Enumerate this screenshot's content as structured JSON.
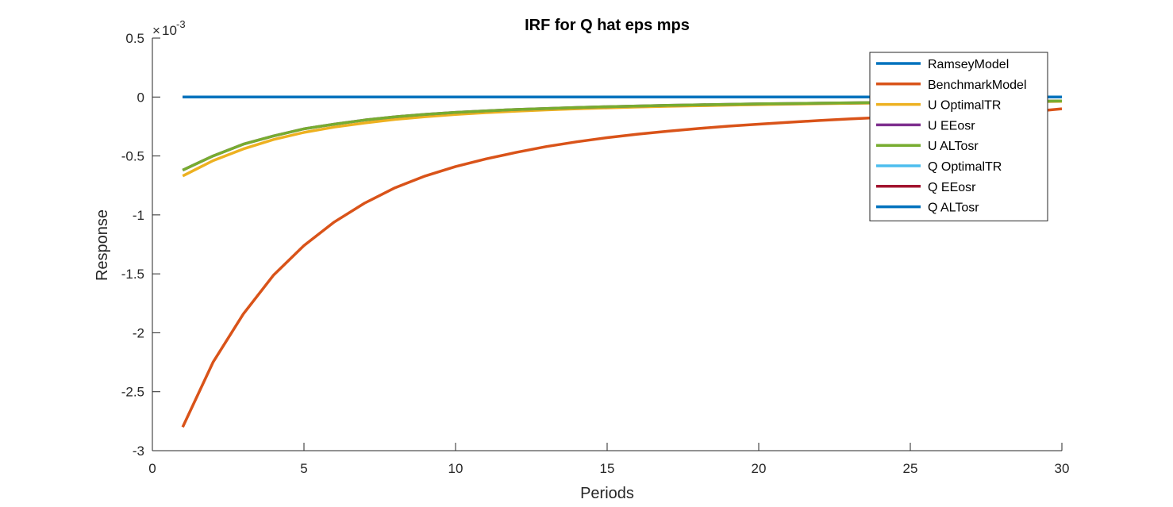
{
  "chart_data": {
    "type": "line",
    "title": "IRF for Q hat eps mps",
    "xlabel": "Periods",
    "ylabel": "Response",
    "y_exponent_base": "10",
    "y_exponent_power": "-3",
    "xlim": [
      0,
      30
    ],
    "ylim": [
      -3,
      0.5
    ],
    "x_ticks": [
      0,
      5,
      10,
      15,
      20,
      25,
      30
    ],
    "y_ticks": [
      -3,
      -2.5,
      -2,
      -1.5,
      -1,
      -0.5,
      0,
      0.5
    ],
    "grid": false,
    "legend_position": "top-right",
    "x": [
      1,
      2,
      3,
      4,
      5,
      6,
      7,
      8,
      9,
      10,
      11,
      12,
      13,
      14,
      15,
      16,
      17,
      18,
      19,
      20,
      21,
      22,
      23,
      24,
      25,
      26,
      27,
      28,
      29,
      30
    ],
    "series": [
      {
        "name": "RamseyModel",
        "color": "#0072BD",
        "values": [
          0,
          0,
          0,
          0,
          0,
          0,
          0,
          0,
          0,
          0,
          0,
          0,
          0,
          0,
          0,
          0,
          0,
          0,
          0,
          0,
          0,
          0,
          0,
          0,
          0,
          0,
          0,
          0,
          0,
          0
        ]
      },
      {
        "name": "BenchmarkModel",
        "color": "#D95319",
        "values": [
          -2.8,
          -2.25,
          -1.84,
          -1.51,
          -1.26,
          -1.06,
          -0.9,
          -0.77,
          -0.67,
          -0.59,
          -0.525,
          -0.47,
          -0.42,
          -0.38,
          -0.345,
          -0.315,
          -0.29,
          -0.267,
          -0.247,
          -0.23,
          -0.214,
          -0.199,
          -0.186,
          -0.174,
          -0.163,
          -0.152,
          -0.142,
          -0.133,
          -0.124,
          -0.1
        ]
      },
      {
        "name": "U OptimalTR",
        "color": "#EDB120",
        "values": [
          -0.67,
          -0.54,
          -0.44,
          -0.36,
          -0.3,
          -0.255,
          -0.22,
          -0.19,
          -0.167,
          -0.148,
          -0.133,
          -0.12,
          -0.109,
          -0.1,
          -0.092,
          -0.085,
          -0.079,
          -0.074,
          -0.069,
          -0.065,
          -0.061,
          -0.057,
          -0.054,
          -0.051,
          -0.048,
          -0.045,
          -0.043,
          -0.041,
          -0.039,
          -0.037
        ]
      },
      {
        "name": "U EEosr",
        "color": "#7E2F8E",
        "values": [
          -0.62,
          -0.5,
          -0.4,
          -0.33,
          -0.27,
          -0.23,
          -0.195,
          -0.168,
          -0.147,
          -0.13,
          -0.117,
          -0.106,
          -0.097,
          -0.089,
          -0.082,
          -0.076,
          -0.071,
          -0.066,
          -0.062,
          -0.058,
          -0.055,
          -0.052,
          -0.049,
          -0.046,
          -0.044,
          -0.042,
          -0.04,
          -0.038,
          -0.036,
          -0.034
        ]
      },
      {
        "name": "U ALTosr",
        "color": "#77AC30",
        "values": [
          -0.62,
          -0.5,
          -0.4,
          -0.33,
          -0.27,
          -0.23,
          -0.195,
          -0.168,
          -0.147,
          -0.13,
          -0.117,
          -0.106,
          -0.097,
          -0.089,
          -0.082,
          -0.076,
          -0.071,
          -0.066,
          -0.062,
          -0.058,
          -0.055,
          -0.052,
          -0.049,
          -0.046,
          -0.044,
          -0.042,
          -0.04,
          -0.038,
          -0.036,
          -0.034
        ]
      },
      {
        "name": "Q OptimalTR",
        "color": "#4DBEEE",
        "values": [
          0,
          0,
          0,
          0,
          0,
          0,
          0,
          0,
          0,
          0,
          0,
          0,
          0,
          0,
          0,
          0,
          0,
          0,
          0,
          0,
          0,
          0,
          0,
          0,
          0,
          0,
          0,
          0,
          0,
          0
        ]
      },
      {
        "name": "Q EEosr",
        "color": "#A2142F",
        "values": [
          0,
          0,
          0,
          0,
          0,
          0,
          0,
          0,
          0,
          0,
          0,
          0,
          0,
          0,
          0,
          0,
          0,
          0,
          0,
          0,
          0,
          0,
          0,
          0,
          0,
          0,
          0,
          0,
          0,
          0
        ]
      },
      {
        "name": "Q ALTosr",
        "color": "#0072BD",
        "values": [
          0,
          0,
          0,
          0,
          0,
          0,
          0,
          0,
          0,
          0,
          0,
          0,
          0,
          0,
          0,
          0,
          0,
          0,
          0,
          0,
          0,
          0,
          0,
          0,
          0,
          0,
          0,
          0,
          0,
          0
        ]
      }
    ]
  }
}
